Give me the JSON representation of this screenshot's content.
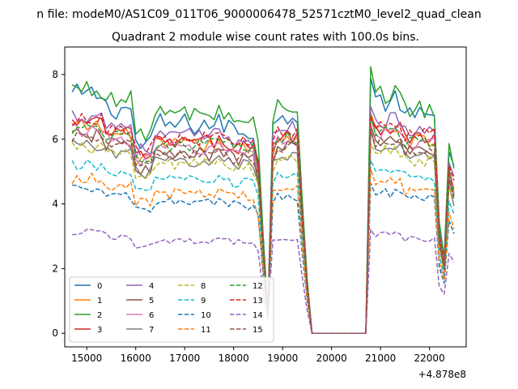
{
  "figure": {
    "suptitle": "n file: modeM0/AS1C09_011T06_9000006478_52571cztM0_level2_quad_clean",
    "background": "#ffffff"
  },
  "chart_data": {
    "type": "line",
    "title": "Quadrant 2 module wise count rates with 100.0s bins.",
    "xlabel": "",
    "ylabel": "",
    "x_offset_label": "+4.878e8",
    "xlim": [
      14550,
      22750
    ],
    "ylim": [
      -0.42,
      8.85
    ],
    "xticks": [
      15000,
      16000,
      17000,
      18000,
      19000,
      20000,
      21000,
      22000
    ],
    "yticks": [
      0,
      2,
      4,
      6,
      8
    ],
    "grid": false,
    "legend_position": "lower-left",
    "legend_columns": 4,
    "x": {
      "start": 14700,
      "stop": 22500,
      "step": 100
    },
    "gap_segments": [
      {
        "x": 18700,
        "y": 0.3
      },
      {
        "x": 19600,
        "y": 0.0
      },
      {
        "x": 20700,
        "y": 0.0
      },
      {
        "x": 22300,
        "y": 1.5
      }
    ],
    "series": [
      {
        "name": "0",
        "color": "#1f77b4",
        "dash": "solid",
        "level": 6.6,
        "amp": 1.4
      },
      {
        "name": "1",
        "color": "#ff7f0e",
        "dash": "solid",
        "level": 5.9,
        "amp": 0.9
      },
      {
        "name": "2",
        "color": "#2ca02c",
        "dash": "solid",
        "level": 6.9,
        "amp": 1.2
      },
      {
        "name": "3",
        "color": "#d62728",
        "dash": "solid",
        "level": 6.0,
        "amp": 0.9
      },
      {
        "name": "4",
        "color": "#9467bd",
        "dash": "solid",
        "level": 6.2,
        "amp": 1.0
      },
      {
        "name": "5",
        "color": "#8c564b",
        "dash": "solid",
        "level": 5.6,
        "amp": 0.9
      },
      {
        "name": "6",
        "color": "#e377c2",
        "dash": "solid",
        "level": 5.8,
        "amp": 0.9
      },
      {
        "name": "7",
        "color": "#7f7f7f",
        "dash": "solid",
        "level": 5.4,
        "amp": 0.8
      },
      {
        "name": "8",
        "color": "#bcbd22",
        "dash": "dashed",
        "level": 5.3,
        "amp": 0.8
      },
      {
        "name": "9",
        "color": "#17becf",
        "dash": "dashed",
        "level": 4.8,
        "amp": 0.7
      },
      {
        "name": "10",
        "color": "#1f77b4",
        "dash": "dashed",
        "level": 4.1,
        "amp": 0.6
      },
      {
        "name": "11",
        "color": "#ff7f0e",
        "dash": "dashed",
        "level": 4.4,
        "amp": 0.7
      },
      {
        "name": "12",
        "color": "#2ca02c",
        "dash": "dashed",
        "level": 5.9,
        "amp": 0.8
      },
      {
        "name": "13",
        "color": "#d62728",
        "dash": "dashed",
        "level": 6.1,
        "amp": 0.9
      },
      {
        "name": "14",
        "color": "#9467bd",
        "dash": "dashed",
        "level": 2.9,
        "amp": 0.4
      },
      {
        "name": "15",
        "color": "#8c564b",
        "dash": "dashed",
        "level": 5.6,
        "amp": 0.8
      }
    ]
  }
}
